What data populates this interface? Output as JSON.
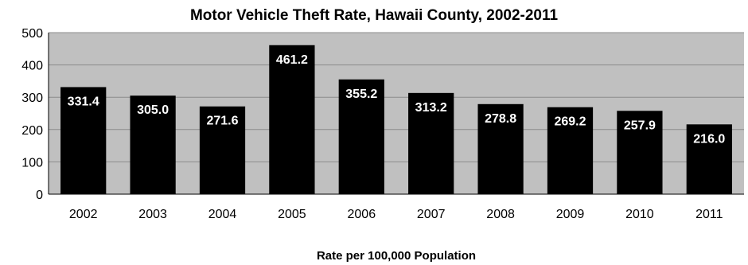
{
  "chart_data": {
    "type": "bar",
    "title": "Motor Vehicle Theft Rate, Hawaii County, 2002-2011",
    "xlabel": "Rate per 100,000 Population",
    "ylabel": "",
    "categories": [
      "2002",
      "2003",
      "2004",
      "2005",
      "2006",
      "2007",
      "2008",
      "2009",
      "2010",
      "2011"
    ],
    "values": [
      331.4,
      305.0,
      271.6,
      461.2,
      355.2,
      313.2,
      278.8,
      269.2,
      257.9,
      216.0
    ],
    "data_labels": [
      "331.4",
      "305.0",
      "271.6",
      "461.2",
      "355.2",
      "313.2",
      "278.8",
      "269.2",
      "257.9",
      "216.0"
    ],
    "ylim": [
      0,
      500
    ],
    "yticks": [
      0,
      100,
      200,
      300,
      400,
      500
    ],
    "grid": true,
    "legend": "none",
    "colors": {
      "bar": "#000000",
      "plot_background": "#c0c0c0",
      "gridline": "#8c8c8c",
      "data_label": "#ffffff"
    }
  }
}
